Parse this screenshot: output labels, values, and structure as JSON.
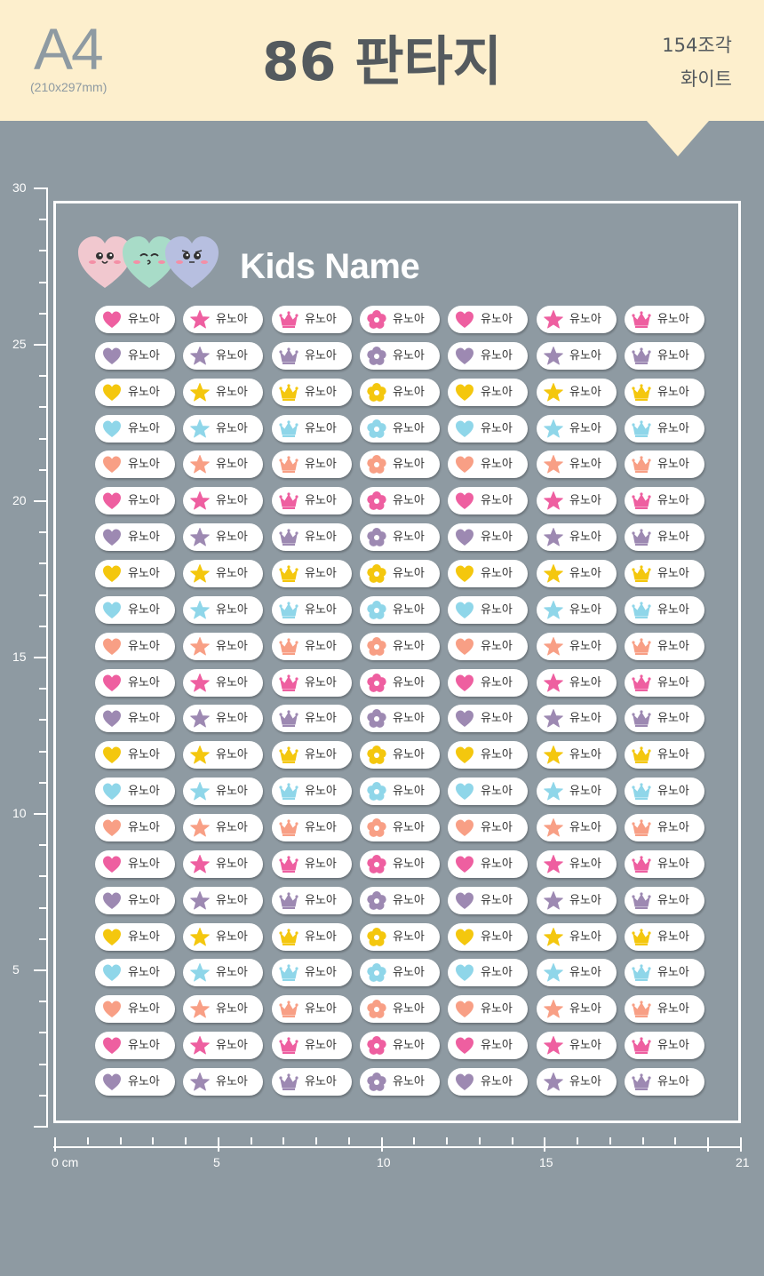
{
  "header": {
    "paper": "A4",
    "paper_size": "(210x297mm)",
    "title": "86 판타지",
    "piece_count": "154조각",
    "color_option": "화이트"
  },
  "ruler": {
    "vertical_labels": [
      "30",
      "25",
      "20",
      "15",
      "10",
      "5"
    ],
    "horizontal_labels": [
      "0 cm",
      "5",
      "10",
      "15",
      "21"
    ]
  },
  "sheet": {
    "title": "Kids Name",
    "sticker_name": "유노아",
    "icons": [
      "heart-icon",
      "star-icon",
      "crown-icon",
      "flower-icon",
      "heart-icon",
      "star-icon",
      "crown-icon"
    ],
    "row_colors": [
      "#ee5fa0",
      "#9d89b2",
      "#f4c70e",
      "#8fd6e9",
      "#f89f85"
    ]
  },
  "colors": {
    "header_bg": "#fdefcd",
    "page_bg": "#8e9aa2"
  }
}
